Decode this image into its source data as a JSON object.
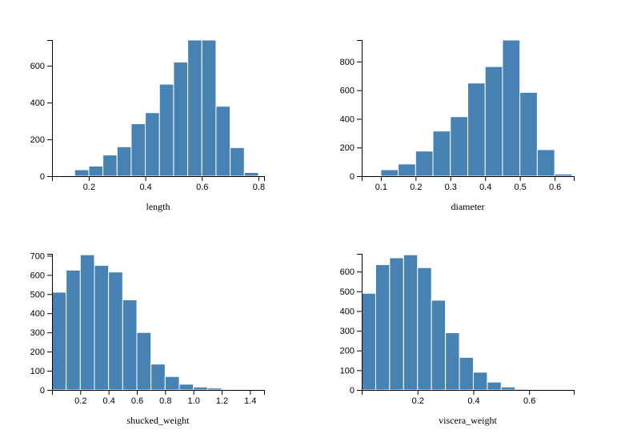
{
  "chart_data": [
    {
      "type": "bar",
      "xlabel": "length",
      "ylabel": "",
      "title": "",
      "xlim": [
        0.07,
        0.82
      ],
      "ylim": [
        0,
        740
      ],
      "xticks": [
        "0.2",
        "0.4",
        "0.6",
        "0.8"
      ],
      "xtick_values": [
        0.2,
        0.4,
        0.6,
        0.8
      ],
      "yticks": [
        "0",
        "200",
        "400",
        "600"
      ],
      "ytick_values": [
        0,
        200,
        400,
        600
      ],
      "bin_width": 0.05,
      "bin_starts": [
        0.1,
        0.15,
        0.2,
        0.25,
        0.3,
        0.35,
        0.4,
        0.45,
        0.5,
        0.55,
        0.6,
        0.65,
        0.7,
        0.75
      ],
      "values": [
        5,
        35,
        55,
        115,
        160,
        285,
        345,
        500,
        620,
        740,
        740,
        380,
        155,
        20
      ]
    },
    {
      "type": "bar",
      "xlabel": "diameter",
      "ylabel": "",
      "title": "",
      "xlim": [
        0.045,
        0.655
      ],
      "ylim": [
        0,
        950
      ],
      "xticks": [
        "0.1",
        "0.2",
        "0.3",
        "0.4",
        "0.5",
        "0.6"
      ],
      "xtick_values": [
        0.1,
        0.2,
        0.3,
        0.4,
        0.5,
        0.6
      ],
      "yticks": [
        "0",
        "200",
        "400",
        "600",
        "800"
      ],
      "ytick_values": [
        0,
        200,
        400,
        600,
        800
      ],
      "bin_width": 0.05,
      "bin_starts": [
        0.1,
        0.15,
        0.2,
        0.25,
        0.3,
        0.35,
        0.4,
        0.45,
        0.5,
        0.55,
        0.6
      ],
      "values": [
        45,
        85,
        175,
        315,
        415,
        650,
        765,
        950,
        585,
        185,
        15
      ]
    },
    {
      "type": "bar",
      "xlabel": "shucked_weight",
      "ylabel": "",
      "title": "",
      "xlim": [
        0,
        1.5
      ],
      "ylim": [
        0,
        710
      ],
      "xticks": [
        "0.2",
        "0.4",
        "0.6",
        "0.8",
        "1.0",
        "1.2",
        "1.4"
      ],
      "xtick_values": [
        0.2,
        0.4,
        0.6,
        0.8,
        1.0,
        1.2,
        1.4
      ],
      "yticks": [
        "0",
        "100",
        "200",
        "300",
        "400",
        "500",
        "600",
        "700"
      ],
      "ytick_values": [
        0,
        100,
        200,
        300,
        400,
        500,
        600,
        700
      ],
      "bin_width": 0.1,
      "bin_starts": [
        0.0,
        0.1,
        0.2,
        0.3,
        0.4,
        0.5,
        0.6,
        0.7,
        0.8,
        0.9,
        1.0,
        1.1,
        1.2,
        1.3
      ],
      "values": [
        510,
        625,
        705,
        650,
        615,
        470,
        300,
        135,
        70,
        30,
        15,
        10,
        3,
        1
      ]
    },
    {
      "type": "bar",
      "xlabel": "viscera_weight",
      "ylabel": "",
      "title": "",
      "xlim": [
        0,
        0.76
      ],
      "ylim": [
        0,
        690
      ],
      "xticks": [
        "0.2",
        "0.4",
        "0.6"
      ],
      "xtick_values": [
        0.2,
        0.4,
        0.6
      ],
      "yticks": [
        "0",
        "100",
        "200",
        "300",
        "400",
        "500",
        "600"
      ],
      "ytick_values": [
        0,
        100,
        200,
        300,
        400,
        500,
        600
      ],
      "bin_width": 0.05,
      "bin_starts": [
        0.0,
        0.05,
        0.1,
        0.15,
        0.2,
        0.25,
        0.3,
        0.35,
        0.4,
        0.45,
        0.5,
        0.55
      ],
      "values": [
        490,
        635,
        670,
        685,
        620,
        455,
        290,
        165,
        90,
        40,
        15,
        5
      ]
    }
  ]
}
